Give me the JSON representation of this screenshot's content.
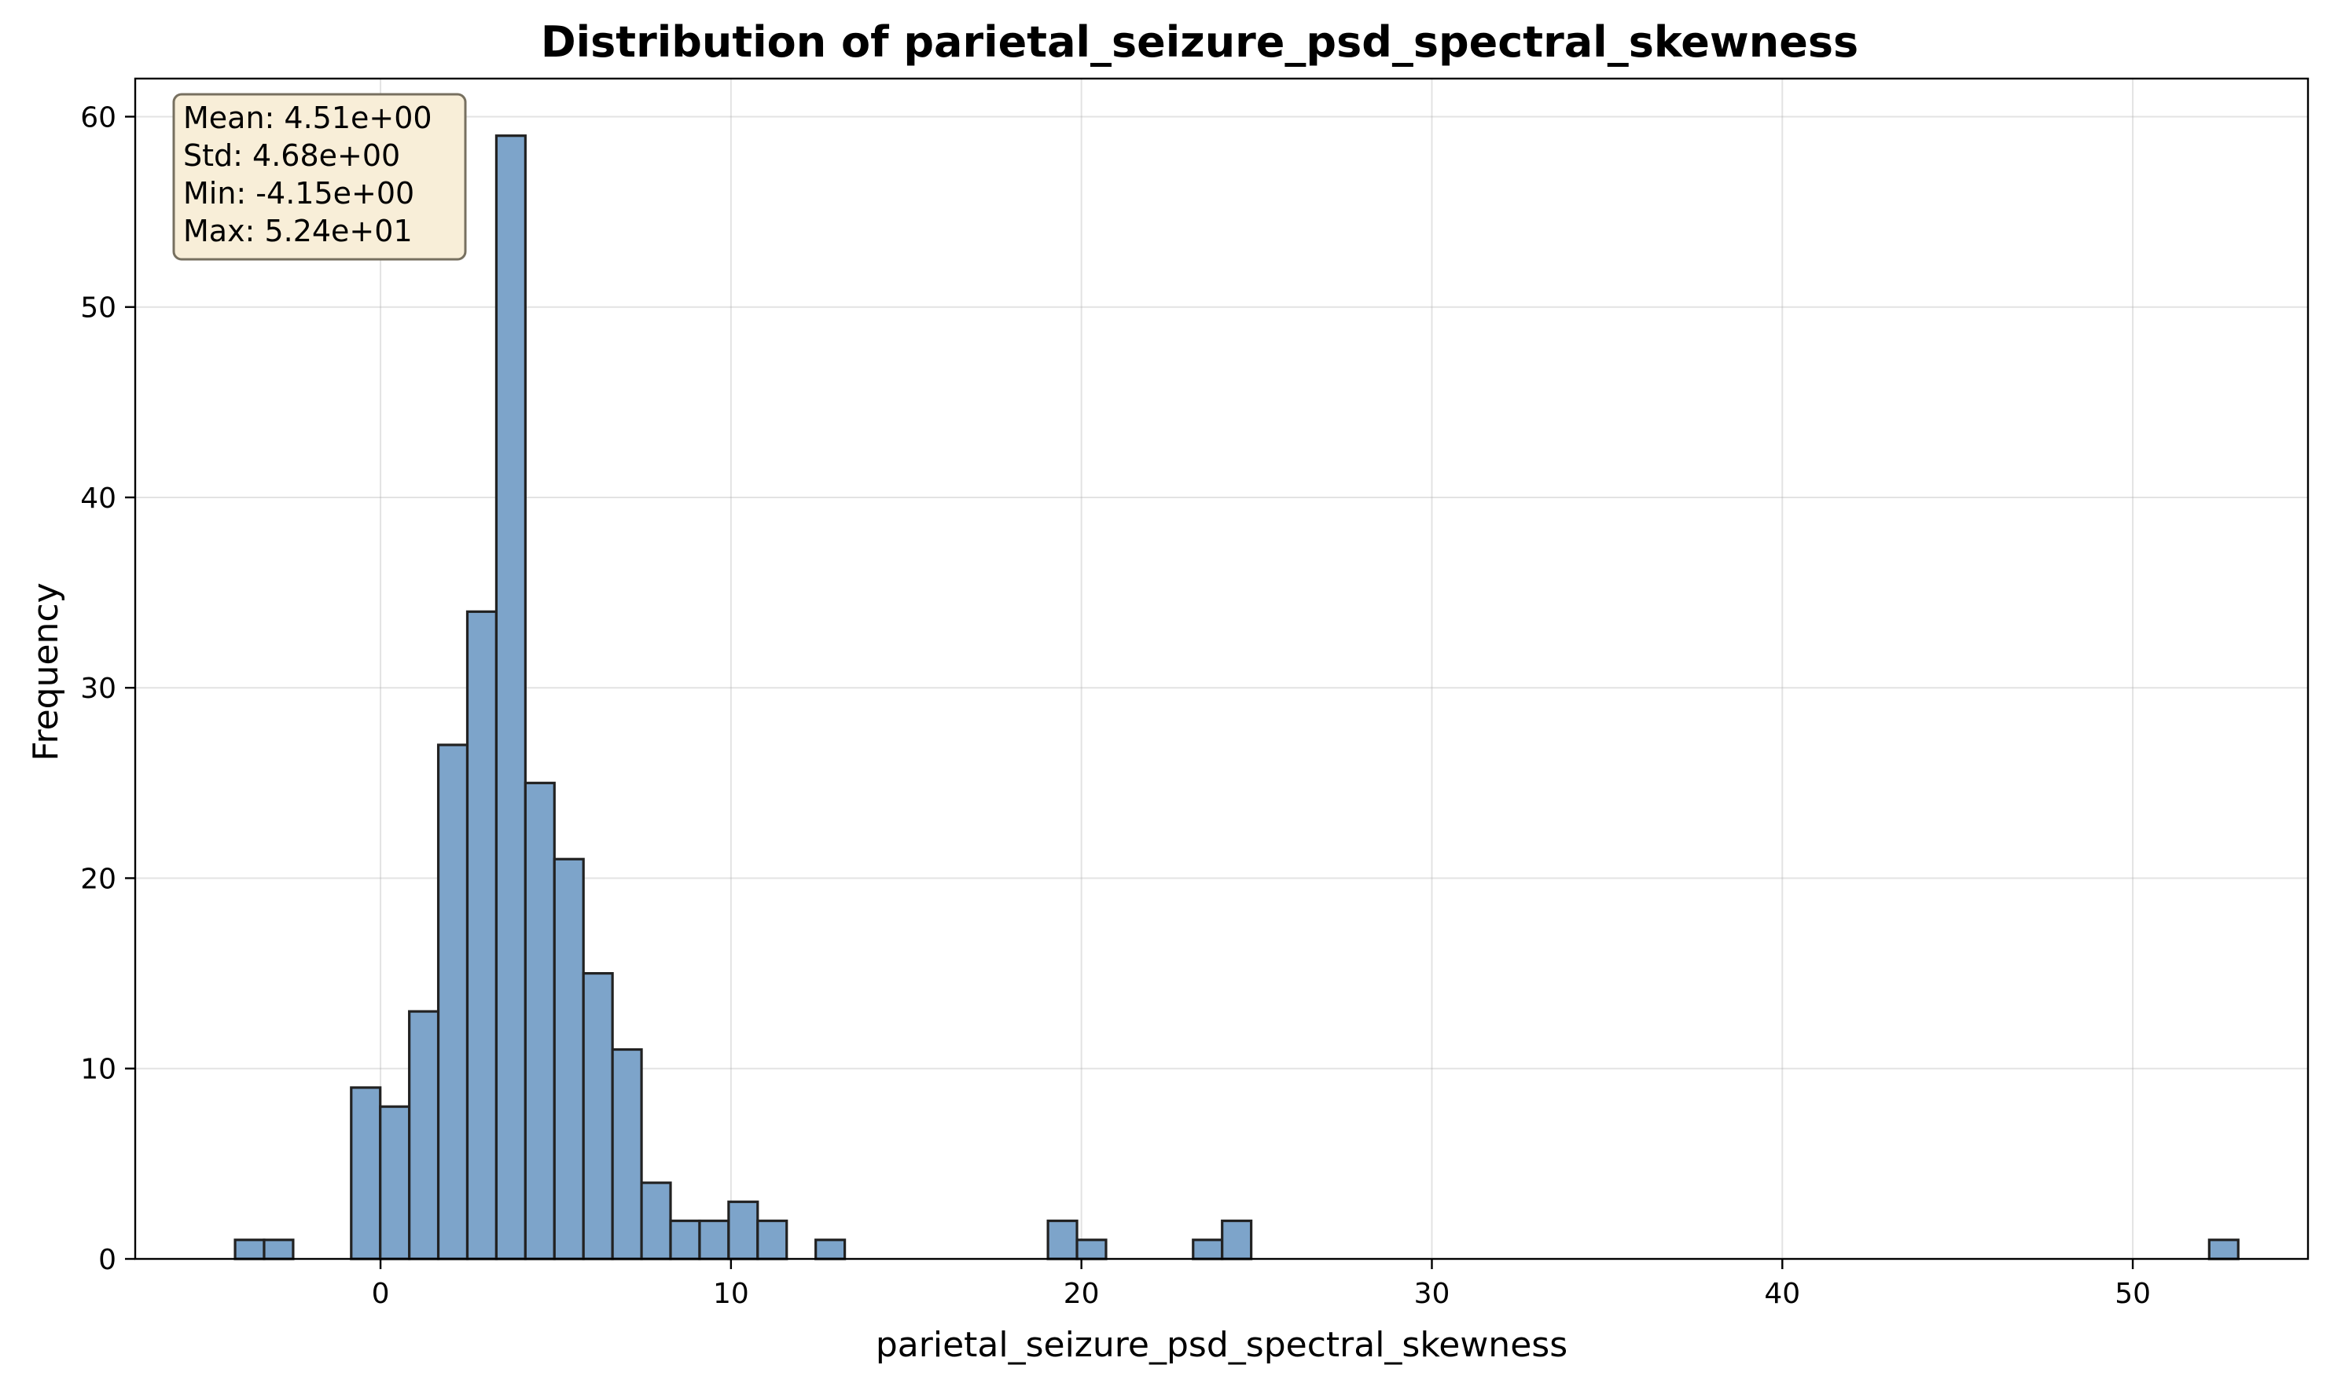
{
  "chart_data": {
    "type": "bar",
    "title": "Distribution of parietal_seizure_psd_spectral_skewness",
    "xlabel": "parietal_seizure_psd_spectral_skewness",
    "ylabel": "Frequency",
    "xlim": [
      -7.0,
      55.0
    ],
    "ylim": [
      0,
      62
    ],
    "xticks": [
      0,
      10,
      20,
      30,
      40,
      50
    ],
    "yticks": [
      0,
      10,
      20,
      30,
      40,
      50,
      60
    ],
    "grid": true,
    "bin_start": -4.15,
    "bin_width": 0.8284,
    "counts": [
      1,
      1,
      0,
      0,
      9,
      8,
      13,
      27,
      34,
      59,
      25,
      21,
      15,
      11,
      4,
      2,
      2,
      3,
      2,
      0,
      1,
      0,
      0,
      0,
      0,
      0,
      0,
      0,
      2,
      1,
      0,
      0,
      0,
      1,
      2,
      0,
      0,
      0,
      0,
      0,
      0,
      0,
      0,
      0,
      0,
      0,
      0,
      0,
      0,
      0,
      0,
      0,
      0,
      0,
      0,
      0,
      0,
      0,
      0,
      0,
      0,
      0,
      0,
      0,
      0,
      0,
      0,
      0,
      1
    ],
    "bar_color": "#7da4ca",
    "edge_color": "#222222",
    "stats_box": {
      "mean": "Mean: 4.51e+00",
      "std": "Std: 4.68e+00",
      "min": "Min: -4.15e+00",
      "max": "Max: 5.24e+01",
      "background": "#f8eed8",
      "placement": "top-left"
    }
  }
}
